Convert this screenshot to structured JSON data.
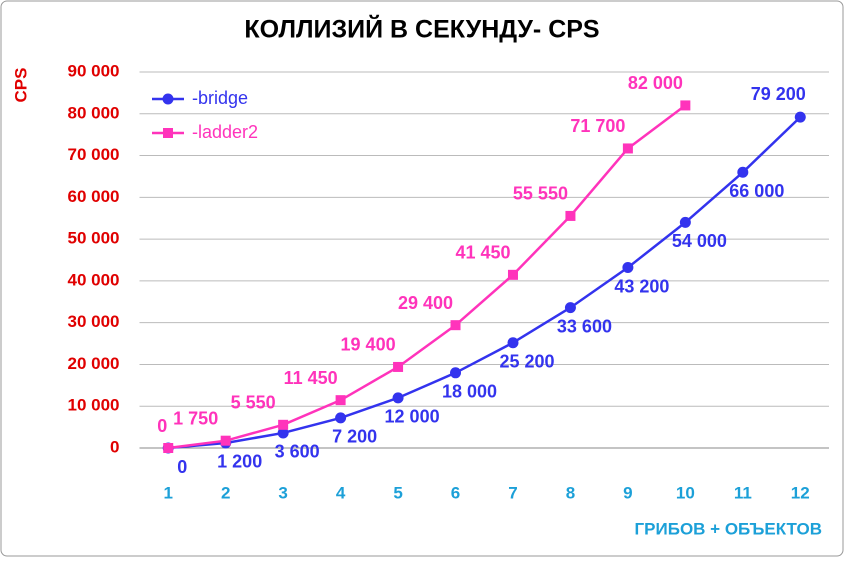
{
  "chart_data": {
    "type": "line",
    "title": "КОЛЛИЗИЙ В СЕКУНДУ- CPS",
    "y_label": "CPS",
    "x_label": "ГРИБОВ + ОБЪЕКТОВ",
    "categories": [
      "1",
      "2",
      "3",
      "4",
      "5",
      "6",
      "7",
      "8",
      "9",
      "10",
      "11",
      "12"
    ],
    "series": [
      {
        "name": "-bridge",
        "color": "#3333ee",
        "marker": "circle",
        "values": [
          0,
          1200,
          3600,
          7200,
          12000,
          18000,
          25200,
          33600,
          43200,
          54000,
          66000,
          79200
        ],
        "value_labels": [
          "0",
          "1 200",
          "3 600",
          "7 200",
          "12 000",
          "18 000",
          "25 200",
          "33 600",
          "43 200",
          "54 000",
          "66 000",
          "79 200"
        ]
      },
      {
        "name": "-ladder2",
        "color": "#ff33bb",
        "marker": "square",
        "values": [
          0,
          1750,
          5550,
          11450,
          19400,
          29400,
          41450,
          55550,
          71700,
          82000,
          null,
          null
        ],
        "value_labels": [
          "0",
          "1 750",
          "5 550",
          "11 450",
          "19 400",
          "29 400",
          "41 450",
          "55 550",
          "71 700",
          "82 000",
          null,
          null
        ]
      }
    ],
    "ylim": [
      0,
      90000
    ],
    "yticks": [
      0,
      {
        "value": 10000,
        "label": "10 000"
      },
      {
        "value": 20000,
        "label": "20 000"
      },
      {
        "value": 30000,
        "label": "30 000"
      },
      {
        "value": 40000,
        "label": "40 000"
      },
      {
        "value": 50000,
        "label": "50 000"
      },
      {
        "value": 60000,
        "label": "60 000"
      },
      {
        "value": 70000,
        "label": "70 000"
      },
      {
        "value": 80000,
        "label": "80 000"
      },
      {
        "value": 90000,
        "label": "90 000"
      }
    ],
    "grid": true,
    "legend": "upper left"
  }
}
